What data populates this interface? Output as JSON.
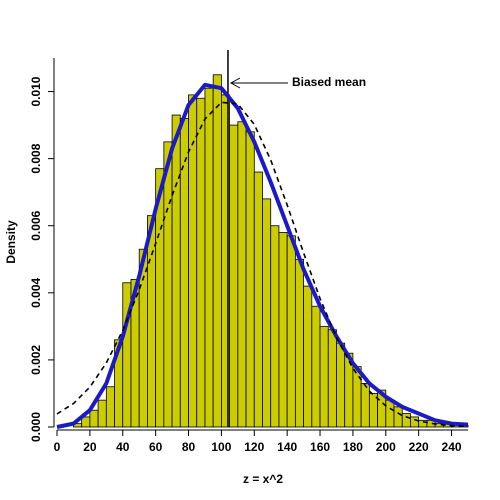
{
  "chart_data": {
    "type": "histogram",
    "xlabel": "z = x^2",
    "ylabel": "Density",
    "bins": [
      0,
      5,
      10,
      15,
      20,
      25,
      30,
      35,
      40,
      45,
      50,
      55,
      60,
      65,
      70,
      75,
      80,
      85,
      90,
      95,
      100,
      105,
      110,
      115,
      120,
      125,
      130,
      135,
      140,
      145,
      150,
      155,
      160,
      165,
      170,
      175,
      180,
      185,
      190,
      195,
      200,
      205,
      210,
      215,
      220,
      225,
      230,
      235,
      240,
      245,
      250
    ],
    "values": [
      0,
      0,
      0.0001,
      0.0003,
      0.0005,
      0.0008,
      0.0012,
      0.0026,
      0.0043,
      0.0044,
      0.0053,
      0.0063,
      0.0077,
      0.0085,
      0.0093,
      0.0092,
      0.0099,
      0.0098,
      0.0101,
      0.0105,
      0.0099,
      0.009,
      0.0091,
      0.0088,
      0.0076,
      0.0068,
      0.006,
      0.0058,
      0.0057,
      0.005,
      0.0042,
      0.0036,
      0.003,
      0.0029,
      0.0025,
      0.0022,
      0.0018,
      0.0013,
      0.001,
      0.0011,
      0.0008,
      0.0006,
      0.0004,
      0.0003,
      0.0002,
      0.0002,
      0.0001,
      0.0001,
      0.0001,
      5e-05
    ],
    "color": "#cccc00",
    "curve_x": [
      0,
      10,
      20,
      30,
      40,
      50,
      60,
      70,
      80,
      90,
      100,
      110,
      120,
      130,
      140,
      150,
      160,
      170,
      180,
      190,
      200,
      210,
      220,
      230,
      240,
      250
    ],
    "curves": [
      {
        "color": "#1a1acc",
        "style": "solid",
        "values": [
          0,
          0.0001,
          0.0005,
          0.0013,
          0.0027,
          0.0045,
          0.0065,
          0.0083,
          0.0096,
          0.0102,
          0.0101,
          0.0095,
          0.0085,
          0.0073,
          0.006,
          0.0047,
          0.0036,
          0.0027,
          0.0019,
          0.0013,
          0.0009,
          0.0006,
          0.0004,
          0.0002,
          0.0001,
          7e-05
        ]
      },
      {
        "color": "#000000",
        "style": "dashed",
        "values": [
          0.00039,
          0.0007,
          0.00119,
          0.00191,
          0.00288,
          0.00409,
          0.00547,
          0.0069,
          0.0082,
          0.00918,
          0.00968,
          0.00963,
          0.00902,
          0.00796,
          0.00662,
          0.00519,
          0.00383,
          0.00267,
          0.00175,
          0.00107,
          0.00063,
          0.00034,
          0.00018,
          9e-05,
          4e-05,
          2e-05
        ]
      }
    ],
    "vline": {
      "x": 104,
      "label": "Biased mean"
    },
    "xlim": [
      0,
      250
    ],
    "ylim": [
      0,
      0.011
    ],
    "xticks": [
      0,
      20,
      40,
      60,
      80,
      100,
      120,
      140,
      160,
      180,
      200,
      220,
      240
    ],
    "yticks": [
      {
        "value": 0,
        "label": "0.000"
      },
      {
        "value": 0.002,
        "label": "0.002"
      },
      {
        "value": 0.004,
        "label": "0.004"
      },
      {
        "value": 0.006,
        "label": "0.006"
      },
      {
        "value": 0.008,
        "label": "0.008"
      },
      {
        "value": 0.01,
        "label": "0.010"
      }
    ]
  }
}
